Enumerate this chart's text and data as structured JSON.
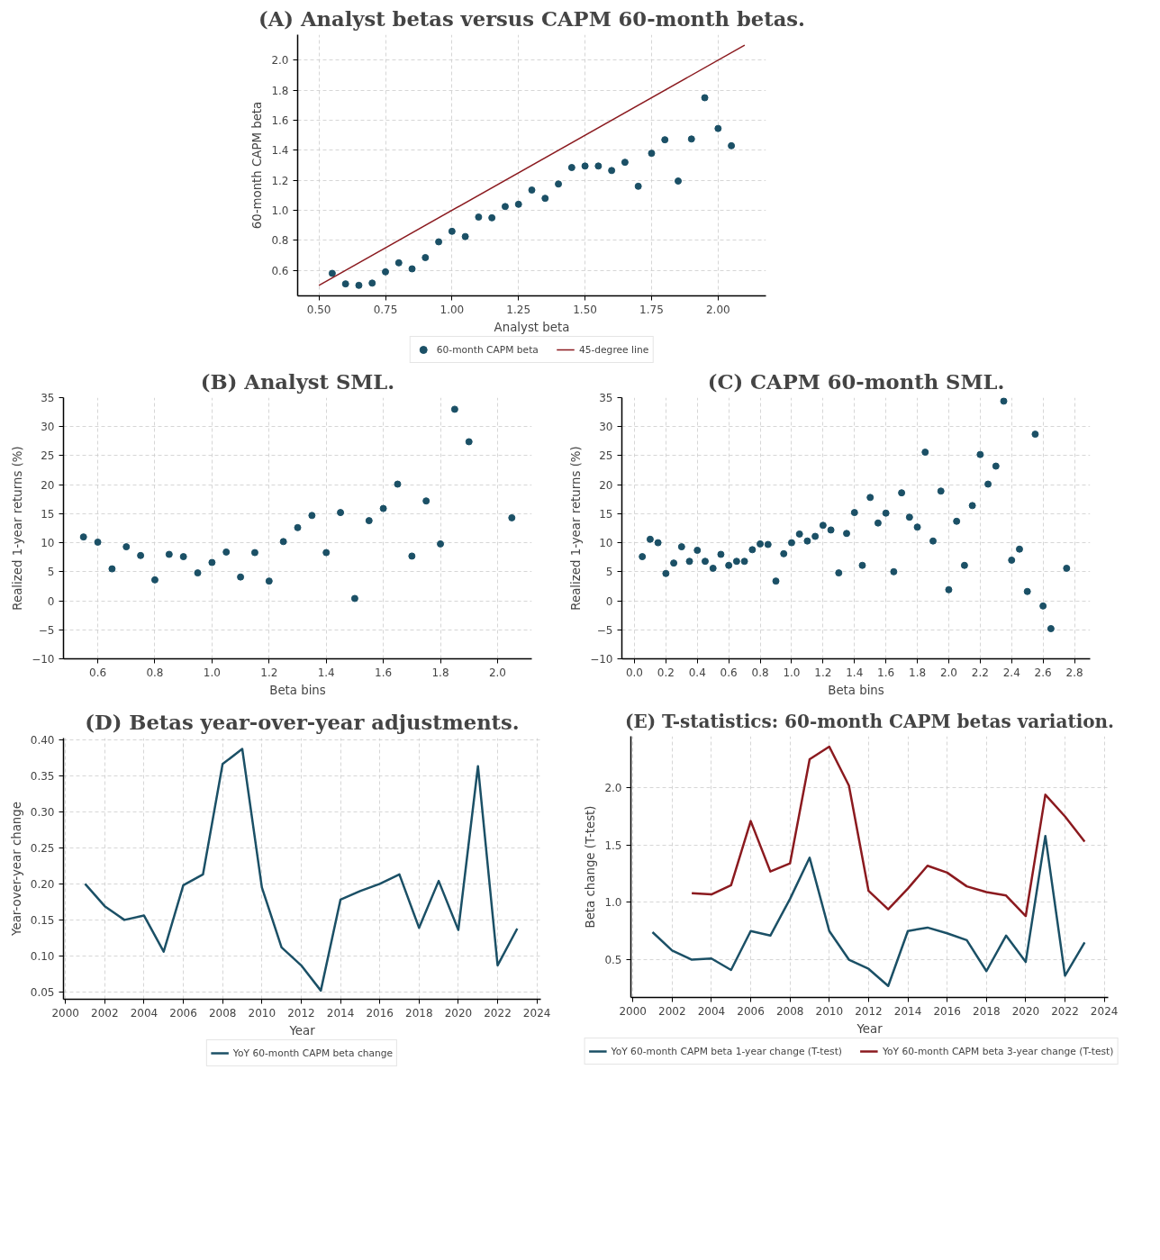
{
  "chart_data": [
    {
      "type": "scatter",
      "title": "(A) Analyst betas versus CAPM 60-month betas.",
      "xlabel": "Analyst beta",
      "ylabel": "60-month CAPM beta",
      "xlim": [
        0.42,
        2.18
      ],
      "ylim": [
        0.43,
        2.17
      ],
      "xticks": [
        {
          "value": 0.5,
          "label": "0.50"
        },
        {
          "value": 0.75,
          "label": "0.75"
        },
        {
          "value": 1.0,
          "label": "1.00"
        },
        {
          "value": 1.25,
          "label": "1.25"
        },
        {
          "value": 1.5,
          "label": "1.50"
        },
        {
          "value": 1.75,
          "label": "1.75"
        },
        {
          "value": 2.0,
          "label": "2.00"
        }
      ],
      "yticks": [
        0.6,
        0.8,
        {
          "value": 1.0,
          "label": "1.0"
        },
        1.2,
        1.4,
        1.6,
        1.8,
        {
          "value": 2.0,
          "label": "2.0"
        }
      ],
      "grid": true,
      "legend": "bottom",
      "series": [
        {
          "name": "60-month CAPM beta",
          "type": "scatter",
          "marker": "circle",
          "color": "#1b5066",
          "x": [
            0.55,
            0.6,
            0.65,
            0.7,
            0.75,
            0.8,
            0.85,
            0.9,
            0.95,
            1.0,
            1.05,
            1.1,
            1.15,
            1.2,
            1.25,
            1.3,
            1.35,
            1.4,
            1.45,
            1.5,
            1.55,
            1.6,
            1.65,
            1.7,
            1.75,
            1.8,
            1.85,
            1.9,
            1.95,
            2.0,
            2.05
          ],
          "values": [
            0.58,
            0.51,
            0.5,
            0.515,
            0.59,
            0.65,
            0.61,
            0.685,
            0.79,
            0.86,
            0.825,
            0.955,
            0.95,
            1.025,
            1.04,
            1.135,
            1.08,
            1.175,
            1.285,
            1.295,
            1.295,
            1.265,
            1.32,
            1.16,
            1.38,
            1.47,
            1.195,
            1.475,
            1.75,
            1.545,
            1.43
          ]
        },
        {
          "name": "45-degree line",
          "type": "line",
          "color": "#8b1a1f",
          "x": [
            0.5,
            2.1
          ],
          "values": [
            0.5,
            2.1
          ]
        }
      ]
    },
    {
      "type": "scatter",
      "title": "(B) Analyst SML.",
      "xlabel": "Beta bins",
      "ylabel": "Realized 1-year returns (%)",
      "xlim": [
        0.48,
        2.12
      ],
      "ylim": [
        -10,
        35
      ],
      "xticks": [
        0.6,
        0.8,
        {
          "value": 1.0,
          "label": "1.0"
        },
        1.2,
        1.4,
        1.6,
        1.8,
        {
          "value": 2.0,
          "label": "2.0"
        }
      ],
      "yticks": [
        {
          "value": -10,
          "label": "−10"
        },
        {
          "value": -5,
          "label": "−5"
        },
        0,
        5,
        10,
        15,
        20,
        25,
        30,
        35
      ],
      "grid": true,
      "marker": "circle",
      "series": [
        {
          "color": "#1b5066",
          "x": [
            0.55,
            0.6,
            0.65,
            0.7,
            0.75,
            0.8,
            0.85,
            0.9,
            0.95,
            1.0,
            1.05,
            1.1,
            1.15,
            1.2,
            1.25,
            1.3,
            1.35,
            1.4,
            1.45,
            1.5,
            1.55,
            1.6,
            1.65,
            1.7,
            1.75,
            1.8,
            1.85,
            1.9,
            2.05
          ],
          "values": [
            11,
            10.1,
            5.5,
            9.3,
            7.8,
            3.6,
            8.0,
            7.6,
            4.8,
            6.6,
            8.4,
            4.1,
            8.3,
            3.4,
            10.2,
            12.6,
            14.7,
            8.3,
            15.2,
            0.4,
            13.8,
            15.9,
            20.1,
            7.7,
            17.2,
            9.8,
            33,
            27.4,
            14.3
          ]
        }
      ]
    },
    {
      "type": "scatter",
      "title": "(C) CAPM 60-month SML.",
      "xlabel": "Beta bins",
      "ylabel": "Realized 1-year returns (%)",
      "xlim": [
        -0.08,
        2.9
      ],
      "ylim": [
        -10,
        35
      ],
      "xticks": [
        {
          "value": 0.0,
          "label": "0.0"
        },
        0.2,
        0.4,
        0.6,
        0.8,
        {
          "value": 1.0,
          "label": "1.0"
        },
        1.2,
        1.4,
        1.6,
        1.8,
        {
          "value": 2.0,
          "label": "2.0"
        },
        2.2,
        2.4,
        2.6,
        2.8
      ],
      "yticks": [
        {
          "value": -10,
          "label": "−10"
        },
        {
          "value": -5,
          "label": "−5"
        },
        0,
        5,
        10,
        15,
        20,
        25,
        30,
        35
      ],
      "grid": true,
      "marker": "circle",
      "series": [
        {
          "color": "#1b5066",
          "x": [
            0.05,
            0.1,
            0.15,
            0.2,
            0.25,
            0.3,
            0.35,
            0.4,
            0.45,
            0.5,
            0.55,
            0.6,
            0.65,
            0.7,
            0.75,
            0.8,
            0.85,
            0.9,
            0.95,
            1.0,
            1.05,
            1.1,
            1.15,
            1.2,
            1.25,
            1.3,
            1.35,
            1.4,
            1.45,
            1.5,
            1.55,
            1.6,
            1.65,
            1.7,
            1.75,
            1.8,
            1.85,
            1.9,
            1.95,
            2.0,
            2.05,
            2.1,
            2.15,
            2.2,
            2.25,
            2.3,
            2.35,
            2.4,
            2.45,
            2.5,
            2.55,
            2.6,
            2.65,
            2.75
          ],
          "values": [
            7.6,
            10.6,
            10.0,
            4.7,
            6.5,
            9.3,
            6.8,
            8.7,
            6.8,
            5.6,
            8.0,
            6.1,
            6.8,
            6.8,
            8.8,
            9.8,
            9.7,
            3.4,
            8.1,
            10.0,
            11.5,
            10.3,
            11.1,
            13.0,
            12.2,
            4.8,
            11.6,
            15.2,
            6.1,
            17.8,
            13.4,
            15.1,
            5.0,
            18.6,
            14.4,
            12.7,
            25.6,
            10.3,
            18.9,
            1.9,
            13.7,
            6.1,
            16.4,
            25.2,
            20.1,
            23.2,
            34.4,
            7.0,
            8.9,
            1.6,
            28.7,
            -0.9,
            -4.8,
            5.6
          ]
        }
      ]
    },
    {
      "type": "line",
      "title": "(D) Betas year-over-year adjustments.",
      "xlabel": "Year",
      "ylabel": "Year-over-year change",
      "xlim": [
        1999.9,
        2024.2
      ],
      "ylim": [
        0.04,
        0.402
      ],
      "xticks": [
        2000,
        2002,
        2004,
        2006,
        2008,
        2010,
        2012,
        2014,
        2016,
        2018,
        2020,
        2022,
        2024
      ],
      "yticks": [
        0.05,
        {
          "value": 0.1,
          "label": "0.10"
        },
        0.15,
        {
          "value": 0.2,
          "label": "0.20"
        },
        0.25,
        {
          "value": 0.3,
          "label": "0.30"
        },
        0.35,
        {
          "value": 0.4,
          "label": "0.40"
        }
      ],
      "grid": true,
      "legend": "bottom",
      "line_style": "solid",
      "x": [
        2001,
        2002,
        2003,
        2004,
        2005,
        2006,
        2007,
        2008,
        2009,
        2010,
        2011,
        2012,
        2013,
        2014,
        2015,
        2016,
        2017,
        2018,
        2019,
        2020,
        2021,
        2022,
        2023
      ],
      "series": [
        {
          "name": "YoY 60-month CAPM beta change",
          "color": "#1b5066",
          "values": [
            0.2,
            0.169,
            0.15,
            0.156,
            0.106,
            0.198,
            0.213,
            0.366,
            0.387,
            0.195,
            0.112,
            0.087,
            0.052,
            0.178,
            0.19,
            0.2,
            0.213,
            0.139,
            0.204,
            0.136,
            0.363,
            0.087,
            0.138
          ]
        }
      ]
    },
    {
      "type": "line",
      "title": "(E) T-statistics: 60-month CAPM betas variation.",
      "xlabel": "Year",
      "ylabel": "Beta change (T-test)",
      "xlim": [
        1999.9,
        2024.2
      ],
      "ylim": [
        0.17,
        2.45
      ],
      "xticks": [
        2000,
        2002,
        2004,
        2006,
        2008,
        2010,
        2012,
        2014,
        2016,
        2018,
        2020,
        2022,
        2024
      ],
      "yticks": [
        0.5,
        {
          "value": 1.0,
          "label": "1.0"
        },
        1.5,
        {
          "value": 2.0,
          "label": "2.0"
        }
      ],
      "grid": true,
      "legend": "bottom",
      "line_style": "solid",
      "series": [
        {
          "name": "YoY 60-month CAPM beta 1-year change (T-test)",
          "color": "#1b5066",
          "x": [
            2001,
            2002,
            2003,
            2004,
            2005,
            2006,
            2007,
            2008,
            2009,
            2010,
            2011,
            2012,
            2013,
            2014,
            2015,
            2016,
            2017,
            2018,
            2019,
            2020,
            2021,
            2022,
            2023
          ],
          "values": [
            0.74,
            0.58,
            0.5,
            0.51,
            0.41,
            0.75,
            0.71,
            1.03,
            1.39,
            0.75,
            0.5,
            0.42,
            0.27,
            0.75,
            0.78,
            0.73,
            0.67,
            0.4,
            0.71,
            0.48,
            1.58,
            0.36,
            0.65
          ]
        },
        {
          "name": "YoY 60-month CAPM beta 3-year change (T-test)",
          "color": "#8b1a1f",
          "x": [
            2003,
            2004,
            2005,
            2006,
            2007,
            2008,
            2009,
            2010,
            2011,
            2012,
            2013,
            2014,
            2015,
            2016,
            2017,
            2018,
            2019,
            2020,
            2021,
            2022,
            2023
          ],
          "values": [
            1.08,
            1.07,
            1.15,
            1.71,
            1.27,
            1.34,
            2.25,
            2.36,
            2.02,
            1.1,
            0.94,
            1.12,
            1.32,
            1.26,
            1.14,
            1.09,
            1.06,
            0.88,
            1.94,
            1.75,
            1.53
          ]
        }
      ]
    }
  ]
}
